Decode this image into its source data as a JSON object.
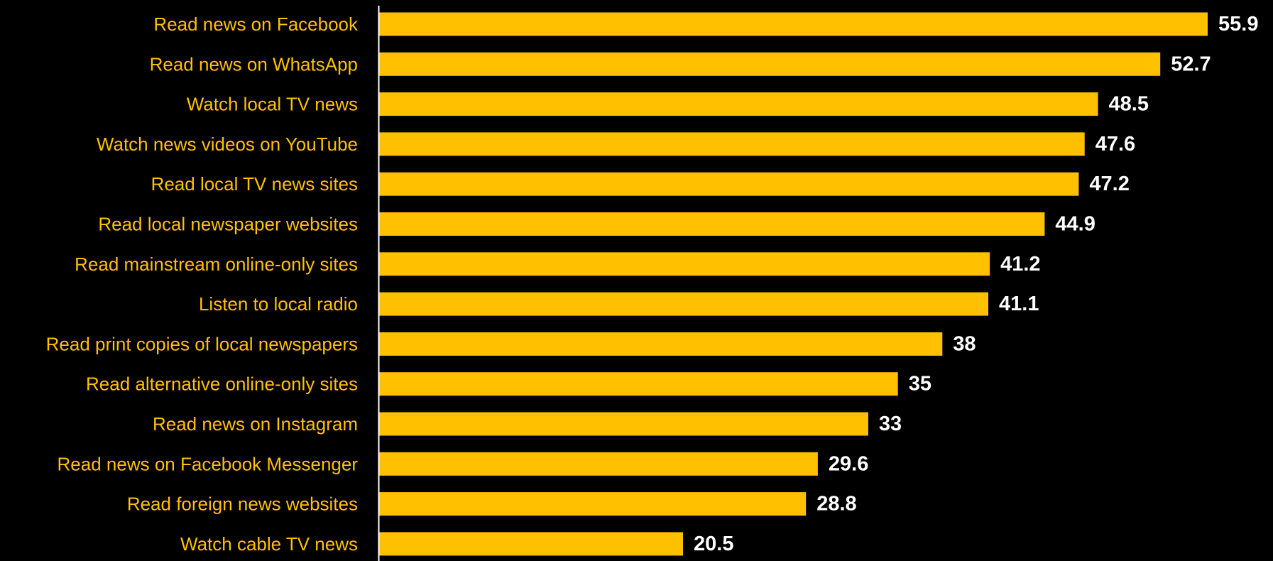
{
  "chart_data": {
    "type": "bar",
    "orientation": "horizontal",
    "categories": [
      "Read news on Facebook",
      "Read news on WhatsApp",
      "Watch local TV news ",
      "Watch news videos on YouTube",
      "Read local TV news sites",
      "Read local newspaper websites",
      "Read mainstream online-only sites",
      "Listen to local radio",
      "Read print copies of local newspapers",
      "Read alternative online-only sites",
      "Read news on Instagram",
      "Read news on Facebook Messenger",
      "Read foreign news websites",
      "Watch cable TV news"
    ],
    "values": [
      55.9,
      52.7,
      48.5,
      47.6,
      47.2,
      44.9,
      41.2,
      41.1,
      38,
      35,
      33,
      29.6,
      28.8,
      20.5
    ],
    "value_labels": [
      "55.9",
      "52.7",
      "48.5",
      "47.6",
      "47.2",
      "44.9",
      "41.2",
      "41.1",
      "38",
      "35",
      "33",
      "29.6",
      "28.8",
      "20.5"
    ],
    "title": "",
    "xlabel": "",
    "ylabel": "",
    "xlim": [
      0,
      55.9
    ],
    "grid": false,
    "legend": "none",
    "colors": {
      "background": "#000000",
      "bar": "#FFC000",
      "category_label": "#FFC000",
      "value_label": "#FFFFFF",
      "axis": "#FFFFFF"
    }
  }
}
